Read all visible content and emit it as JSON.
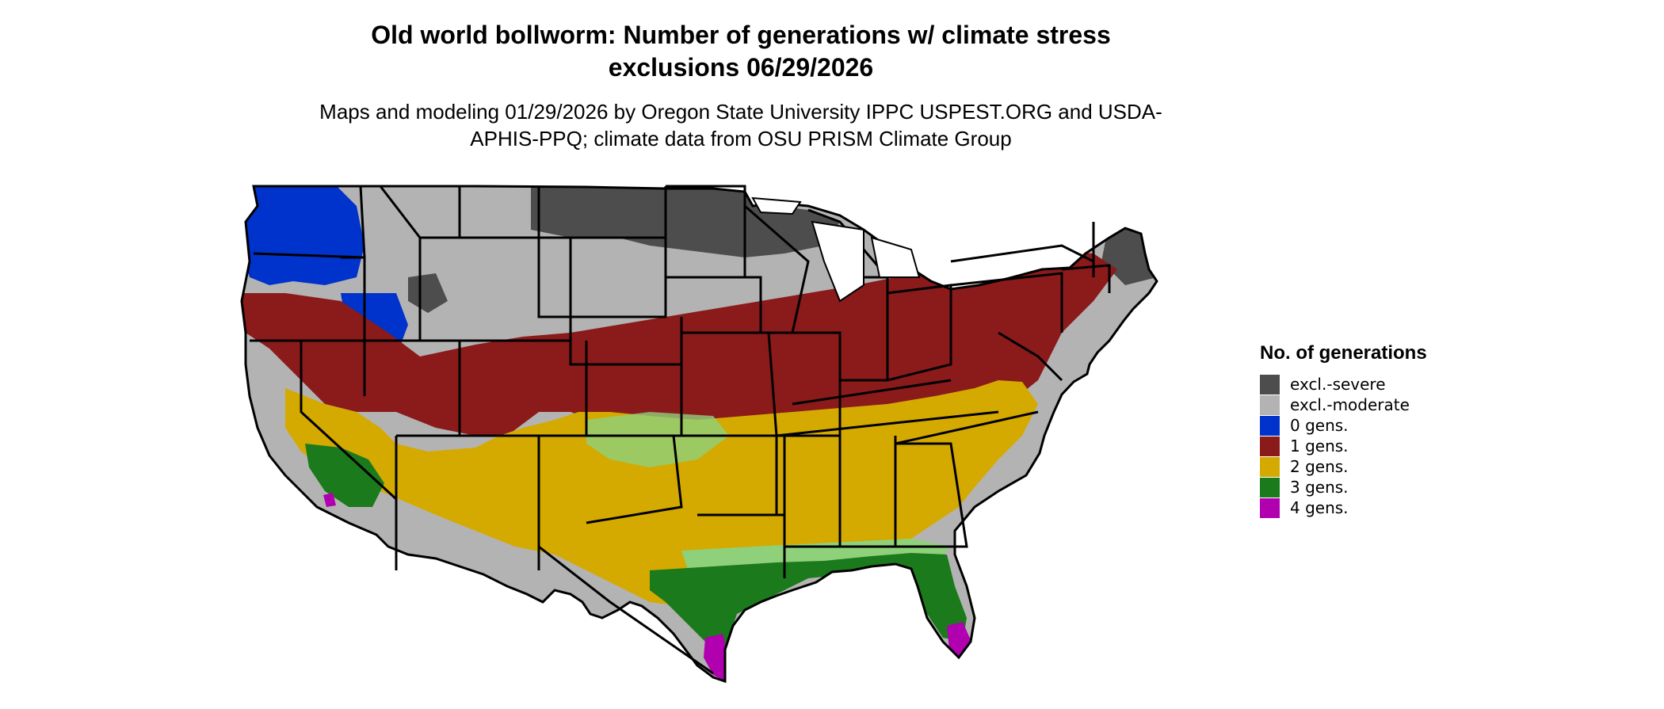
{
  "title": "Old world bollworm: Number of generations w/ climate stress exclusions 06/29/2026",
  "subtitle": "Maps and modeling 01/29/2026 by Oregon State University IPPC USPEST.ORG and USDA-APHIS-PPQ; climate data from OSU PRISM Climate Group",
  "legend": {
    "title": "No. of generations",
    "items": [
      {
        "label": "excl.-severe",
        "color": "#4d4d4d"
      },
      {
        "label": "excl.-moderate",
        "color": "#b3b3b3"
      },
      {
        "label": "0 gens.",
        "color": "#0033cc"
      },
      {
        "label": "1 gens.",
        "color": "#8b1a1a"
      },
      {
        "label": "2 gens.",
        "color": "#d4aa00"
      },
      {
        "label": "3 gens.",
        "color": "#1b7a1b"
      },
      {
        "label": "4 gens.",
        "color": "#b000b0"
      }
    ]
  },
  "map": {
    "region": "Contiguous United States",
    "colors": {
      "light_green": "#8fd17a",
      "state_border": "#000000"
    }
  }
}
